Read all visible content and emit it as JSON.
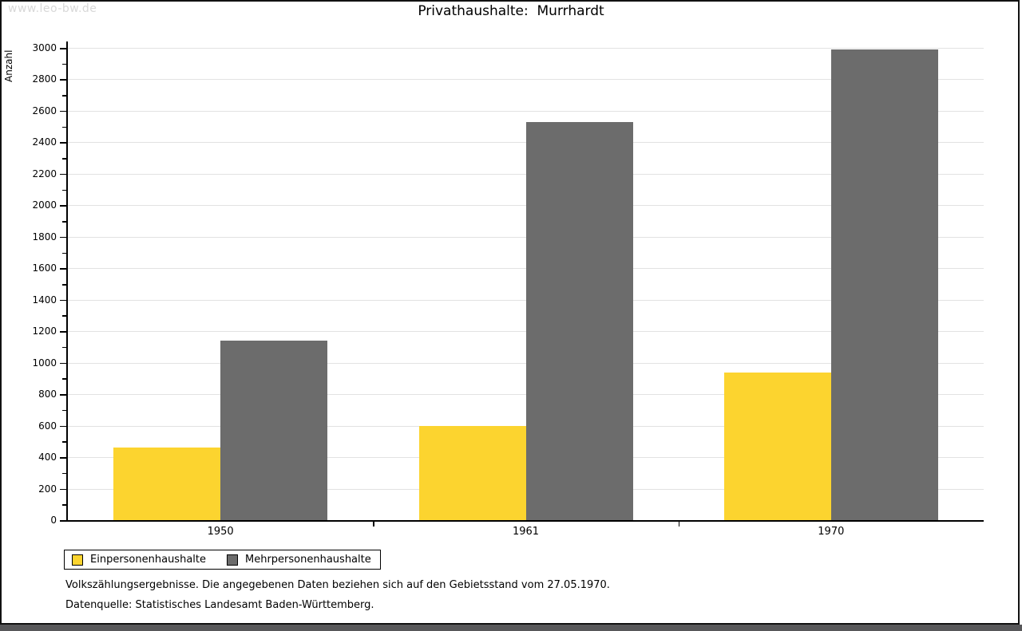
{
  "watermark": "www.leo-bw.de",
  "title": "Privathaushalte:  Murrhardt",
  "chart_data": {
    "type": "bar",
    "title": "Privathaushalte: Murrhardt",
    "categories": [
      "1950",
      "1961",
      "1970"
    ],
    "series": [
      {
        "name": "Einpersonenhaushalte",
        "color": "#fcd42f",
        "values": [
          460,
          600,
          940
        ]
      },
      {
        "name": "Mehrpersonenhaushalte",
        "color": "#6c6c6c",
        "values": [
          1140,
          2530,
          2990
        ]
      }
    ],
    "xlabel": "",
    "ylabel": "Anzahl",
    "ylim": [
      0,
      3000
    ],
    "ytick_major": 200,
    "ytick_minor": 100,
    "grid": true,
    "legend_position": "bottom-left"
  },
  "footer": {
    "line1": "Volkszählungsergebnisse. Die angegebenen Daten beziehen sich auf den Gebietsstand vom 27.05.1970.",
    "line2": "Datenquelle: Statistisches Landesamt Baden-Württemberg."
  },
  "colors": {
    "bar_yellow": "#fcd42f",
    "bar_gray": "#6c6c6c",
    "gridline": "#e2e2e2",
    "axis": "#000000",
    "watermark": "#d8d8d8",
    "bottom_bar": "#58585a",
    "frame": "#111111",
    "background": "#ffffff"
  }
}
